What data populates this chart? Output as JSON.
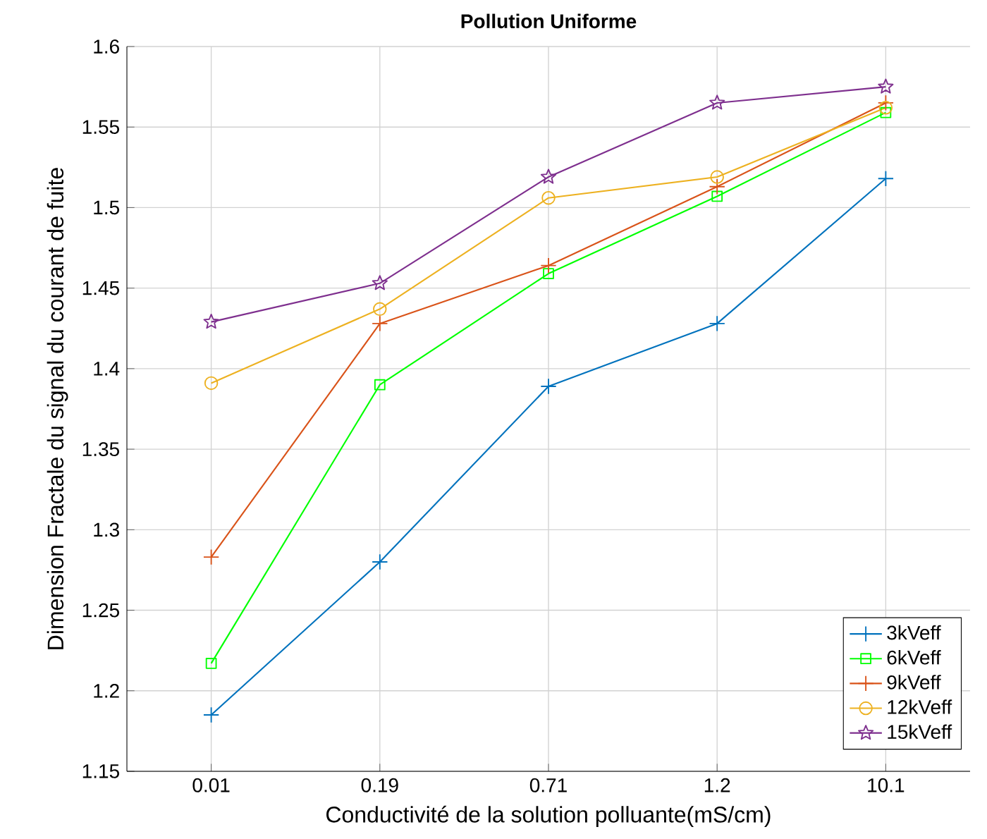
{
  "chart_data": {
    "type": "line",
    "title": "Pollution Uniforme",
    "xlabel": "Conductivité de la solution polluante(mS/cm)",
    "ylabel": "Dimension Fractale du signal du courant de fuite",
    "categories": [
      "0.01",
      "0.19",
      "0.71",
      "1.2",
      "10.1"
    ],
    "series": [
      {
        "name": "3kVeff",
        "color": "#0072bd",
        "marker": "cross",
        "values": [
          1.185,
          1.28,
          1.389,
          1.428,
          1.518
        ]
      },
      {
        "name": "6kVeff",
        "color": "#00ff00",
        "marker": "square",
        "values": [
          1.217,
          1.39,
          1.459,
          1.507,
          1.559
        ]
      },
      {
        "name": "9kVeff",
        "color": "#d95319",
        "marker": "cross",
        "values": [
          1.283,
          1.428,
          1.464,
          1.513,
          1.565
        ]
      },
      {
        "name": "12kVeff",
        "color": "#edb120",
        "marker": "circle",
        "values": [
          1.391,
          1.437,
          1.506,
          1.519,
          1.562
        ]
      },
      {
        "name": "15kVeff",
        "color": "#7e2f8e",
        "marker": "star",
        "values": [
          1.429,
          1.453,
          1.519,
          1.565,
          1.575
        ]
      }
    ],
    "ylim": [
      1.15,
      1.6
    ],
    "yticks": [
      1.15,
      1.2,
      1.25,
      1.3,
      1.35,
      1.4,
      1.45,
      1.5,
      1.55,
      1.6
    ],
    "grid": true,
    "legend": "bottom right",
    "line_style": "solid"
  }
}
